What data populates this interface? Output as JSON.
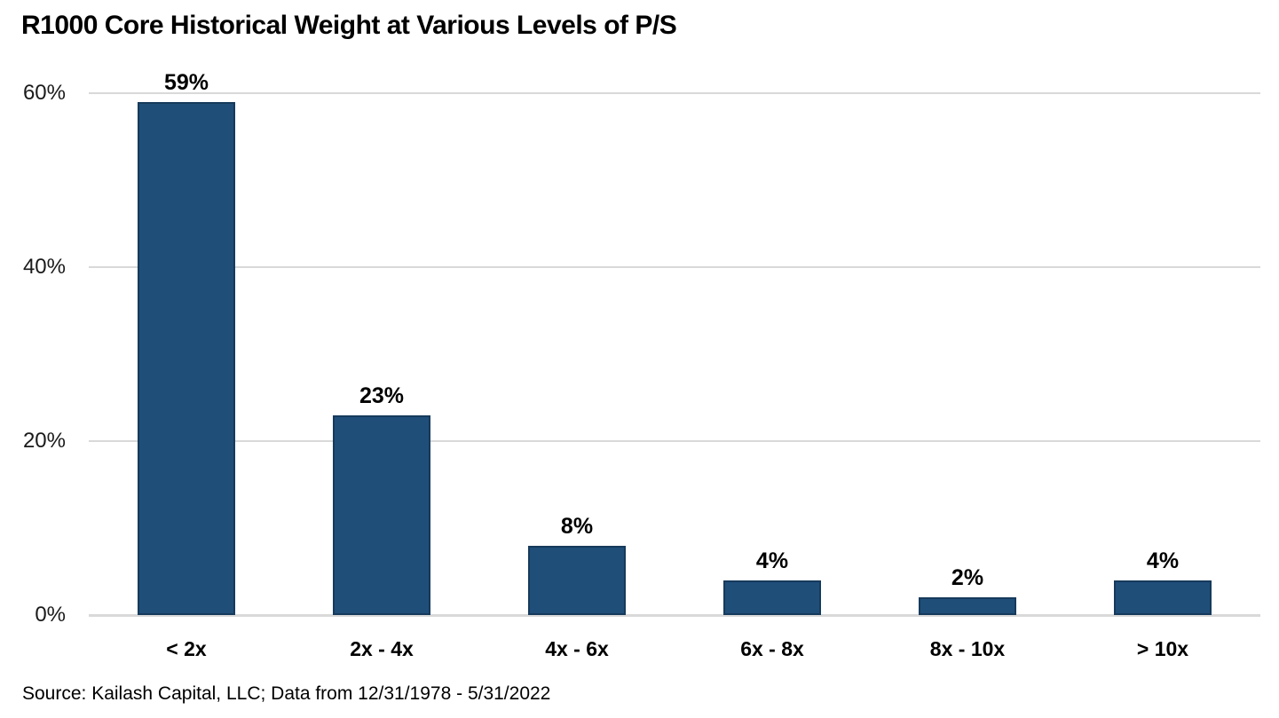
{
  "chart": {
    "title": "R1000 Core Historical Weight at Various Levels of P/S",
    "source": "Source: Kailash Capital, LLC; Data from 12/31/1978 - 5/31/2022"
  },
  "chart_data": {
    "type": "bar",
    "title": "R1000 Core Historical Weight at Various Levels of P/S",
    "categories": [
      "< 2x",
      "2x - 4x",
      "4x - 6x",
      "6x - 8x",
      "8x - 10x",
      "> 10x"
    ],
    "values": [
      59,
      23,
      8,
      4,
      2,
      4
    ],
    "data_labels": [
      "59%",
      "23%",
      "8%",
      "4%",
      "2%",
      "4%"
    ],
    "xlabel": "",
    "ylabel": "",
    "ylim": [
      0,
      60
    ],
    "yticks": [
      0,
      20,
      40,
      60
    ],
    "ytick_labels": [
      "0%",
      "20%",
      "40%",
      "60%"
    ],
    "grid": true,
    "legend": false,
    "bar_color": "#1F4E79",
    "bar_border_color": "#163A5B",
    "gridline_color": "#D9D9D9",
    "text_color": "#000000",
    "source": "Source: Kailash Capital, LLC; Data from 12/31/1978 - 5/31/2022"
  }
}
